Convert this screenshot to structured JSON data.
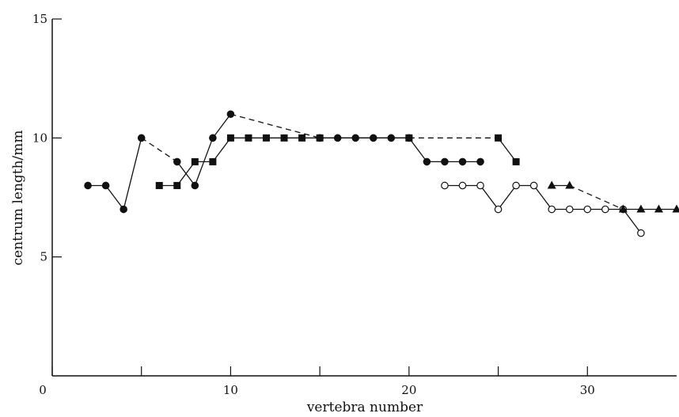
{
  "chart_data": {
    "type": "line",
    "xlabel": "vertebra number",
    "ylabel": "centrum length/mm",
    "xlim": [
      0,
      35
    ],
    "ylim": [
      0,
      15
    ],
    "xticks": [
      0,
      10,
      20,
      30
    ],
    "xtick_labels": [
      "0",
      "10",
      "20",
      "30"
    ],
    "xticks_minor": [
      5,
      15,
      25
    ],
    "yticks": [
      5,
      10,
      15
    ],
    "ytick_labels": [
      "5",
      "10",
      "15"
    ],
    "grid": false,
    "series": [
      {
        "marker": "filled-circle",
        "color": "#111111",
        "points": [
          [
            2,
            8
          ],
          [
            3,
            8
          ],
          [
            4,
            7
          ],
          [
            5,
            10
          ],
          [
            7,
            9
          ],
          [
            8,
            8
          ],
          [
            9,
            10
          ],
          [
            10,
            11
          ],
          [
            15,
            10
          ],
          [
            16,
            10
          ],
          [
            17,
            10
          ],
          [
            18,
            10
          ],
          [
            19,
            10
          ],
          [
            20,
            10
          ],
          [
            21,
            9
          ],
          [
            22,
            9
          ],
          [
            23,
            9
          ],
          [
            24,
            9
          ]
        ],
        "dashed_segments": [
          [
            5,
            7
          ],
          [
            10,
            15
          ]
        ]
      },
      {
        "marker": "filled-square",
        "color": "#111111",
        "points": [
          [
            6,
            8
          ],
          [
            7,
            8
          ],
          [
            8,
            9
          ],
          [
            9,
            9
          ],
          [
            10,
            10
          ],
          [
            11,
            10
          ],
          [
            12,
            10
          ],
          [
            13,
            10
          ],
          [
            14,
            10
          ],
          [
            15,
            10
          ],
          [
            20,
            10
          ],
          [
            25,
            10
          ],
          [
            26,
            9
          ]
        ],
        "dashed_segments": [
          [
            20,
            25
          ]
        ]
      },
      {
        "marker": "open-circle",
        "color": "#111111",
        "points": [
          [
            22,
            8
          ],
          [
            23,
            8
          ],
          [
            24,
            8
          ],
          [
            25,
            7
          ],
          [
            26,
            8
          ],
          [
            27,
            8
          ],
          [
            28,
            7
          ],
          [
            29,
            7
          ],
          [
            30,
            7
          ],
          [
            31,
            7
          ],
          [
            32,
            7
          ],
          [
            33,
            6
          ]
        ],
        "dashed_segments": []
      },
      {
        "marker": "filled-triangle",
        "color": "#111111",
        "points": [
          [
            28,
            8
          ],
          [
            29,
            8
          ],
          [
            32,
            7
          ],
          [
            33,
            7
          ],
          [
            34,
            7
          ],
          [
            35,
            7
          ]
        ],
        "dashed_segments": [
          [
            29,
            32
          ]
        ]
      }
    ]
  }
}
